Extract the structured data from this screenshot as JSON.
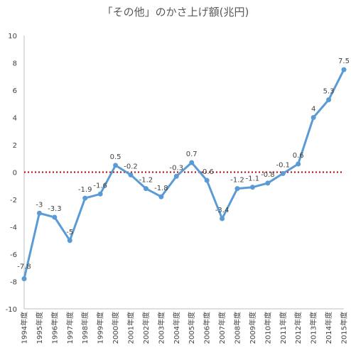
{
  "chart_data": {
    "type": "line",
    "title": "「その他」のかさ上げ額(兆円)",
    "xlabel": "",
    "ylabel": "",
    "categories": [
      "1994年度",
      "1995年度",
      "1996年度",
      "1997年度",
      "1998年度",
      "1999年度",
      "2000年度",
      "2001年度",
      "2002年度",
      "2003年度",
      "2004年度",
      "2005年度",
      "2006年度",
      "2007年度",
      "2008年度",
      "2009年度",
      "2010年度",
      "2011年度",
      "2012年度",
      "2013年度",
      "2014年度",
      "2015年度"
    ],
    "series": [
      {
        "values": [
          -7.8,
          -3,
          -3.3,
          -5,
          -1.9,
          -1.6,
          0.5,
          -0.2,
          -1.2,
          -1.8,
          -0.3,
          0.7,
          -0.6,
          -3.4,
          -1.2,
          -1.1,
          -0.8,
          -0.1,
          0.6,
          4,
          5.3,
          7.5
        ]
      }
    ],
    "data_labels": [
      "-7.8",
      "-3",
      "-3.3",
      "-5",
      "-1.9",
      "-1.6",
      "0.5",
      "-0.2",
      "-1.2",
      "-1.8",
      "-0.3",
      "0.7",
      "-0.6",
      "-3.4",
      "-1.2",
      "-1.1",
      "-0.8",
      "-0.1",
      "0.6",
      "4",
      "5.3",
      "7.5"
    ],
    "ylim": [
      -10,
      10
    ],
    "yticks": [
      "-10",
      "-8",
      "-6",
      "-4",
      "-2",
      "0",
      "2",
      "4",
      "6",
      "8",
      "10"
    ],
    "grid": false,
    "reference_line": {
      "y": 0,
      "style": "dotted",
      "color": "#c00000"
    },
    "colors": {
      "line": "#5b9bd5",
      "axis": "#bfbfbf",
      "text": "#404040",
      "title": "#595959"
    }
  }
}
